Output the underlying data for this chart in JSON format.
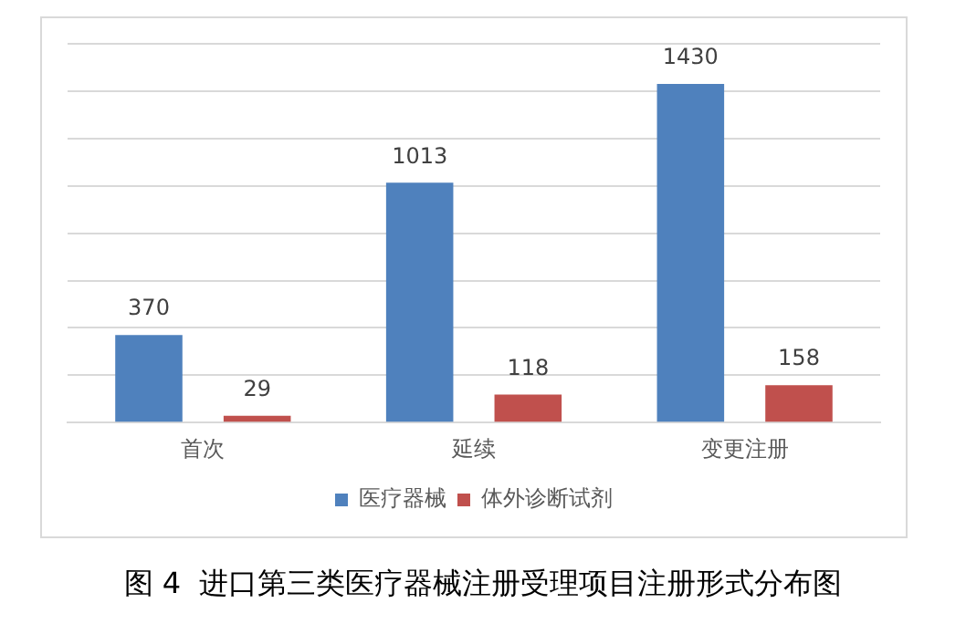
{
  "chart_data": {
    "type": "bar",
    "title": "图 4  进口第三类医疗器械注册受理项目注册形式分布图",
    "categories": [
      "首次",
      "延续",
      "变更注册"
    ],
    "series": [
      {
        "name": "医疗器械",
        "color": "#4f81bd",
        "values": [
          370,
          1013,
          1430
        ]
      },
      {
        "name": "体外诊断试剂",
        "color": "#c0504d",
        "values": [
          29,
          118,
          158
        ]
      }
    ],
    "tick_labels": "x",
    "grid": "y",
    "legend": "bottom",
    "data_labels": true
  }
}
